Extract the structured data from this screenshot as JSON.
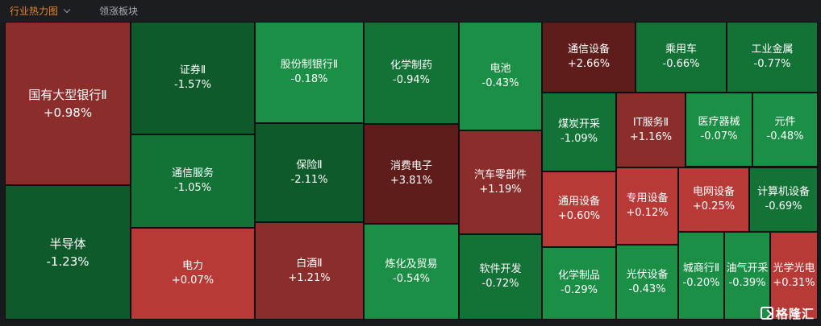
{
  "header": {
    "tabs": [
      {
        "label": "行业热力图",
        "active": true
      },
      {
        "label": "领涨板块",
        "active": false
      }
    ]
  },
  "colors": {
    "strong_up": "#5e1d1b",
    "up": "#8a2d2b",
    "mild_up": "#b83a37",
    "flat_down": "#1a8f45",
    "down": "#137236",
    "strong_down": "#0e5a2a"
  },
  "watermark": "格隆汇",
  "chart_data": {
    "type": "treemap",
    "title": "",
    "metric": "daily change",
    "items": [
      {
        "name": "国有大型银行Ⅱ",
        "change": "+0.98%",
        "value": 0.98
      },
      {
        "name": "半导体",
        "change": "-1.23%",
        "value": -1.23
      },
      {
        "name": "证券Ⅱ",
        "change": "-1.57%",
        "value": -1.57
      },
      {
        "name": "通信服务",
        "change": "-1.05%",
        "value": -1.05
      },
      {
        "name": "电力",
        "change": "+0.07%",
        "value": 0.07
      },
      {
        "name": "股份制银行Ⅱ",
        "change": "-0.18%",
        "value": -0.18
      },
      {
        "name": "保险Ⅱ",
        "change": "-2.11%",
        "value": -2.11
      },
      {
        "name": "白酒Ⅱ",
        "change": "+1.21%",
        "value": 1.21
      },
      {
        "name": "化学制药",
        "change": "-0.94%",
        "value": -0.94
      },
      {
        "name": "消费电子",
        "change": "+3.81%",
        "value": 3.81
      },
      {
        "name": "炼化及贸易",
        "change": "-0.54%",
        "value": -0.54
      },
      {
        "name": "电池",
        "change": "-0.43%",
        "value": -0.43
      },
      {
        "name": "汽车零部件",
        "change": "+1.19%",
        "value": 1.19
      },
      {
        "name": "软件开发",
        "change": "-0.72%",
        "value": -0.72
      },
      {
        "name": "通信设备",
        "change": "+2.66%",
        "value": 2.66
      },
      {
        "name": "乘用车",
        "change": "-0.66%",
        "value": -0.66
      },
      {
        "name": "工业金属",
        "change": "-0.77%",
        "value": -0.77
      },
      {
        "name": "煤炭开采",
        "change": "-1.09%",
        "value": -1.09
      },
      {
        "name": "IT服务Ⅱ",
        "change": "+1.16%",
        "value": 1.16
      },
      {
        "name": "医疗器械",
        "change": "-0.07%",
        "value": -0.07
      },
      {
        "name": "元件",
        "change": "-0.48%",
        "value": -0.48
      },
      {
        "name": "通用设备",
        "change": "+0.60%",
        "value": 0.6
      },
      {
        "name": "专用设备",
        "change": "+0.12%",
        "value": 0.12
      },
      {
        "name": "电网设备",
        "change": "+0.25%",
        "value": 0.25
      },
      {
        "name": "计算机设备",
        "change": "-0.69%",
        "value": -0.69
      },
      {
        "name": "化学制品",
        "change": "-0.29%",
        "value": -0.29
      },
      {
        "name": "光伏设备",
        "change": "-0.43%",
        "value": -0.43
      },
      {
        "name": "城商行Ⅱ",
        "change": "-0.20%",
        "value": -0.2
      },
      {
        "name": "油气开采",
        "change": "-0.39%",
        "value": -0.39
      },
      {
        "name": "光学光电",
        "change": "+0.31%",
        "value": 0.31
      }
    ]
  }
}
